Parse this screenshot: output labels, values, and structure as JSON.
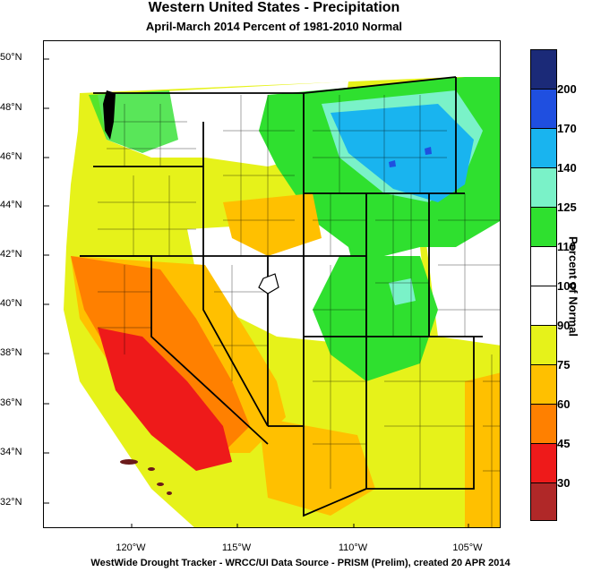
{
  "title": "Western United States - Precipitation",
  "subtitle": "April-March 2014  Percent of 1981-2010 Normal",
  "footer": "WestWide Drought Tracker - WRCC/UI  Data Source - PRISM (Prelim), created 20 APR 2014",
  "legend": {
    "title": "Percent of Normal",
    "ticks": [
      "200",
      "170",
      "140",
      "125",
      "110",
      "100",
      "90",
      "75",
      "60",
      "45",
      "30"
    ],
    "colors": [
      "#1b2a78",
      "#1f4fe0",
      "#19b4ef",
      "#7af2c8",
      "#2fe02f",
      "#ffffff",
      "#ffffff",
      "#e6f21a",
      "#ffc000",
      "#ff8000",
      "#ee1a1a",
      "#b02828"
    ]
  },
  "lat_labels": [
    "50°N",
    "48°N",
    "46°N",
    "44°N",
    "42°N",
    "40°N",
    "38°N",
    "36°N",
    "34°N",
    "32°N"
  ],
  "lon_labels": [
    "120°W",
    "115°W",
    "110°W",
    "105°W"
  ],
  "map_colors": {
    "very_dry": "#ee1a1a",
    "dry": "#ff8000",
    "moderately_dry": "#ffc000",
    "slightly_dry": "#e6f21a",
    "near_normal": "#ffffff",
    "wet": "#2fe02f",
    "wetter": "#7af2c8",
    "very_wet": "#19b4ef",
    "extreme_wet": "#1f4fe0"
  }
}
